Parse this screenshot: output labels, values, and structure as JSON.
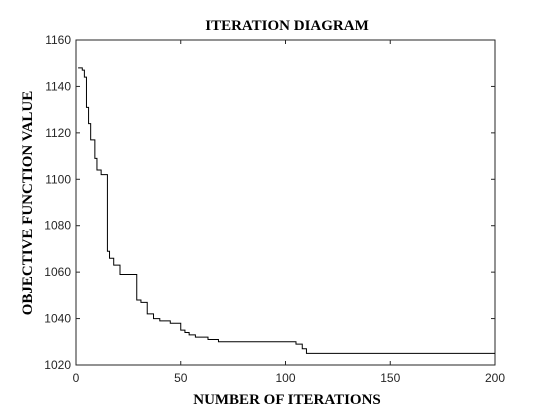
{
  "chart_data": {
    "type": "line",
    "title": "ITERATION DIAGRAM",
    "xlabel": "NUMBER OF ITERATIONS",
    "ylabel": "OBJECTIVE FUNCTION VALUE",
    "xlim": [
      0,
      200
    ],
    "ylim": [
      1020,
      1160
    ],
    "xticks": [
      0,
      50,
      100,
      150,
      200
    ],
    "yticks": [
      1020,
      1040,
      1060,
      1080,
      1100,
      1120,
      1140,
      1160
    ],
    "grid": false,
    "line_color": "#000000",
    "series": [
      {
        "step": "post",
        "x": [
          1,
          3,
          4,
          5,
          6,
          7,
          9,
          10,
          12,
          15,
          16,
          18,
          21,
          29,
          31,
          34,
          37,
          40,
          45,
          50,
          52,
          54,
          57,
          63,
          68,
          105,
          108,
          110,
          200
        ],
        "y": [
          1148,
          1147,
          1144,
          1131,
          1124,
          1117,
          1109,
          1104,
          1102,
          1069,
          1066,
          1063,
          1059,
          1048,
          1047,
          1042,
          1040,
          1039,
          1038,
          1035,
          1034,
          1033,
          1032,
          1031,
          1030,
          1029,
          1027,
          1025,
          1025
        ]
      }
    ]
  }
}
